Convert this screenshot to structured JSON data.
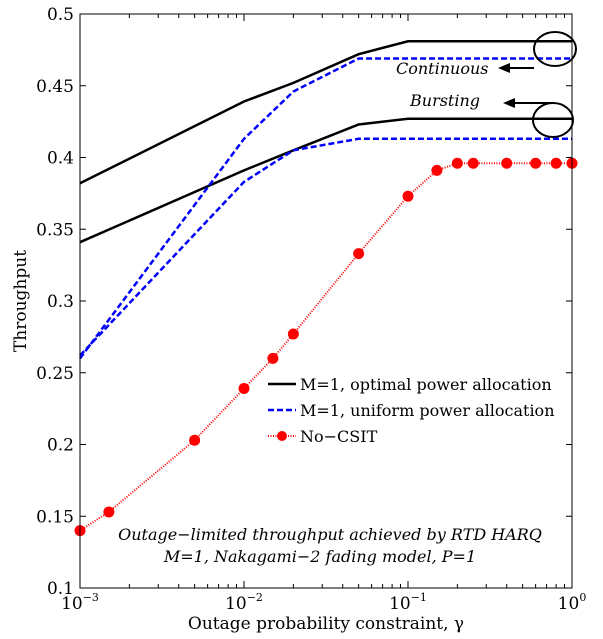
{
  "chart_data": {
    "type": "line",
    "xscale": "log",
    "xlim": [
      0.001,
      1
    ],
    "ylim": [
      0.1,
      0.5
    ],
    "grid": false,
    "xlabel": "Outage probability constraint, γ",
    "ylabel": "Throughput",
    "xticks": [
      {
        "value": 0.001,
        "base": "10",
        "exp": "−3"
      },
      {
        "value": 0.01,
        "base": "10",
        "exp": "−2"
      },
      {
        "value": 0.1,
        "base": "10",
        "exp": "−1"
      },
      {
        "value": 1,
        "base": "10",
        "exp": "0"
      }
    ],
    "yticks": [
      {
        "value": 0.1,
        "label": "0.1"
      },
      {
        "value": 0.15,
        "label": "0.15"
      },
      {
        "value": 0.2,
        "label": "0.2"
      },
      {
        "value": 0.25,
        "label": "0.25"
      },
      {
        "value": 0.3,
        "label": "0.3"
      },
      {
        "value": 0.35,
        "label": "0.35"
      },
      {
        "value": 0.4,
        "label": "0.4"
      },
      {
        "value": 0.45,
        "label": "0.45"
      },
      {
        "value": 0.5,
        "label": "0.5"
      }
    ],
    "series": [
      {
        "name": "M=1, optimal power allocation",
        "color": "#000000",
        "style": "solid",
        "in_legend": true,
        "x": [
          0.001,
          0.01,
          0.02,
          0.05,
          0.1,
          1
        ],
        "y": [
          0.382,
          0.439,
          0.452,
          0.472,
          0.481,
          0.481
        ]
      },
      {
        "name": "",
        "color": "#000000",
        "style": "solid",
        "in_legend": false,
        "x": [
          0.001,
          0.01,
          0.02,
          0.05,
          0.1,
          1
        ],
        "y": [
          0.341,
          0.391,
          0.405,
          0.423,
          0.427,
          0.427
        ]
      },
      {
        "name": "M=1, uniform power allocation",
        "color": "#0000ff",
        "style": "dashed",
        "in_legend": true,
        "x": [
          0.001,
          0.01,
          0.02,
          0.05,
          1
        ],
        "y": [
          0.26,
          0.413,
          0.446,
          0.469,
          0.469
        ]
      },
      {
        "name": "",
        "color": "#0000ff",
        "style": "dashed",
        "in_legend": false,
        "x": [
          0.001,
          0.01,
          0.02,
          0.05,
          1
        ],
        "y": [
          0.262,
          0.383,
          0.405,
          0.413,
          0.413
        ]
      },
      {
        "name": "No−CSIT",
        "color": "#ff0000",
        "style": "dotted-markers",
        "in_legend": true,
        "x": [
          0.001,
          0.0015,
          0.005,
          0.01,
          0.015,
          0.02,
          0.05,
          0.1,
          0.15,
          0.2,
          0.25,
          0.4,
          0.6,
          0.8,
          1
        ],
        "y": [
          0.14,
          0.153,
          0.203,
          0.239,
          0.26,
          0.277,
          0.333,
          0.373,
          0.391,
          0.396,
          0.396,
          0.396,
          0.396,
          0.396,
          0.396
        ]
      }
    ],
    "legend_position": "center-right",
    "annotations": {
      "continuous": "Continuous",
      "bursting": "Bursting",
      "caption_line1": "Outage−limited throughput achieved by RTD HARQ",
      "caption_line2": "M=1, Nakagami−2 fading model, P=1"
    }
  }
}
